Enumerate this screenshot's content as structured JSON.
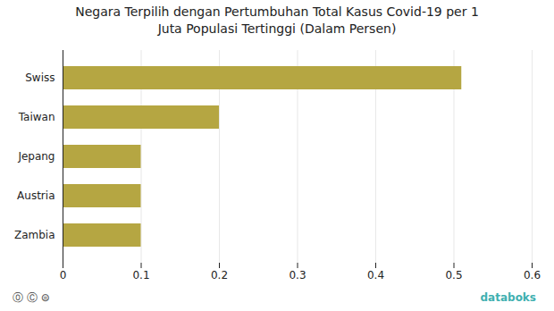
{
  "chart_data": {
    "type": "bar",
    "orientation": "horizontal",
    "title": "Negara Terpilih dengan Pertumbuhan Total Kasus Covid-19 per 1\nJuta Populasi Tertinggi (Dalam Persen)",
    "categories": [
      "Zambia",
      "Austria",
      "Jepang",
      "Taiwan",
      "Swiss"
    ],
    "values": [
      0.1,
      0.1,
      0.1,
      0.2,
      0.51
    ],
    "color": "#b5a642",
    "xlim": [
      0,
      0.6
    ],
    "xticks": [
      0,
      0.1,
      0.2,
      0.3,
      0.4,
      0.5,
      0.6
    ],
    "grid": true,
    "annotations": [
      "⓪ Ⓒ ⊜",
      "databoks"
    ]
  }
}
